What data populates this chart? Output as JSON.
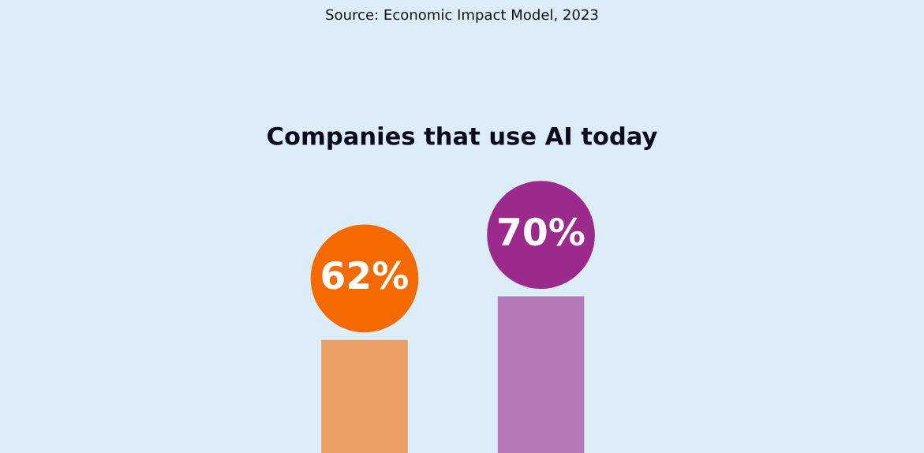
{
  "chart_data": {
    "type": "bar",
    "title": "Companies that use AI today",
    "annotations": [
      "Source: Economic Impact Model, 2023"
    ],
    "categories": [
      null,
      null
    ],
    "values": [
      62,
      70
    ],
    "colors": [
      "#f56a00",
      "#9b2a8c"
    ],
    "data_labels": true,
    "value_labels": [
      "62%",
      "70%"
    ]
  }
}
